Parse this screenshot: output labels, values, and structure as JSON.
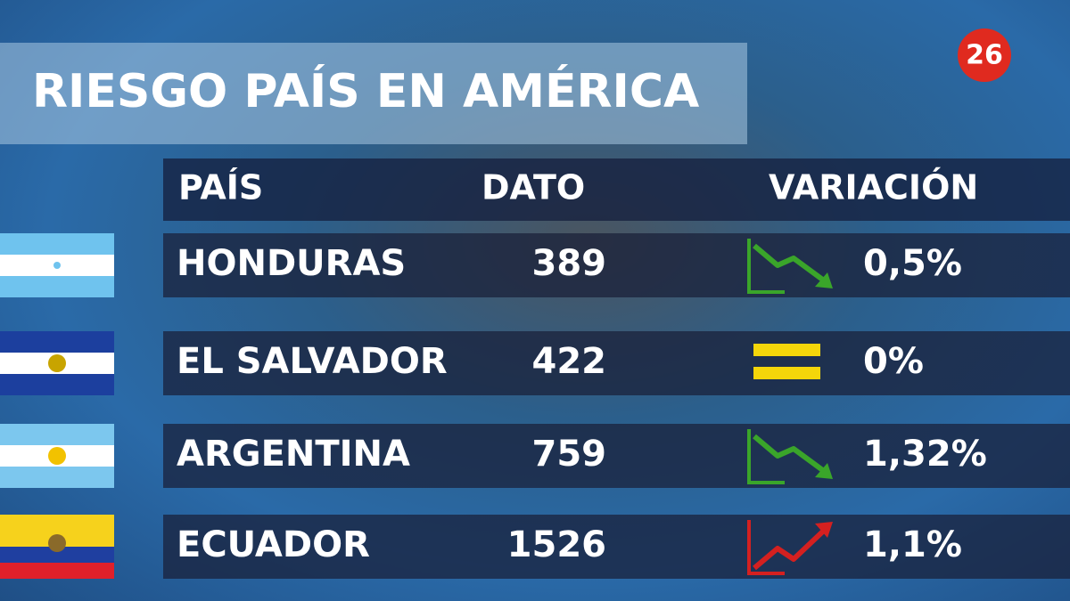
{
  "title": "RIESGO PAÍS EN AMÉRICA",
  "logo": "26",
  "table": {
    "header": [
      "PAÍS",
      "DATO",
      "VARIACIÓN"
    ],
    "rows": [
      {
        "country": "HONDURAS",
        "value": "389",
        "variation": "0,5%",
        "trend": "down"
      },
      {
        "country": "EL SALVADOR",
        "value": "422",
        "variation": "0%",
        "trend": "flat"
      },
      {
        "country": "ARGENTINA",
        "value": "759",
        "variation": "1,32%",
        "trend": "down"
      },
      {
        "country": "ECUADOR",
        "value": "1526",
        "variation": "1,1%",
        "trend": "up"
      }
    ]
  }
}
